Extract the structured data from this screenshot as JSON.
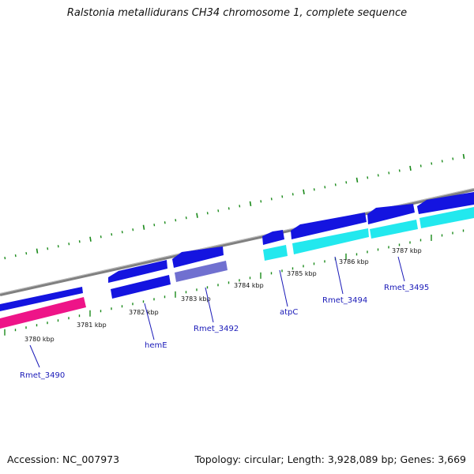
{
  "title": "Ralstonia metallidurans CH34 chromosome 1, complete sequence",
  "footer": {
    "accession": "Accession: NC_007973",
    "stats": "Topology: circular; Length: 3,928,089 bp; Genes: 3,669"
  },
  "colors": {
    "background": "#ffffff",
    "backbone": "#808080",
    "ticks": "#1a8a1a",
    "gene_blue": "#1414e0",
    "gene_cyan": "#22e8ee",
    "gene_magenta": "#ee1488",
    "gene_slate": "#7070d0",
    "label": "#1a1ab8"
  },
  "kbp_labels": [
    "3780 kbp",
    "3781 kbp",
    "3782 kbp",
    "3783 kbp",
    "3784 kbp",
    "3785 kbp",
    "3786 kbp",
    "3787 kbp"
  ],
  "gene_labels": [
    "Rmet_3490",
    "hemE",
    "Rmet_3492",
    "atpC",
    "Rmet_3494",
    "Rmet_3495"
  ]
}
